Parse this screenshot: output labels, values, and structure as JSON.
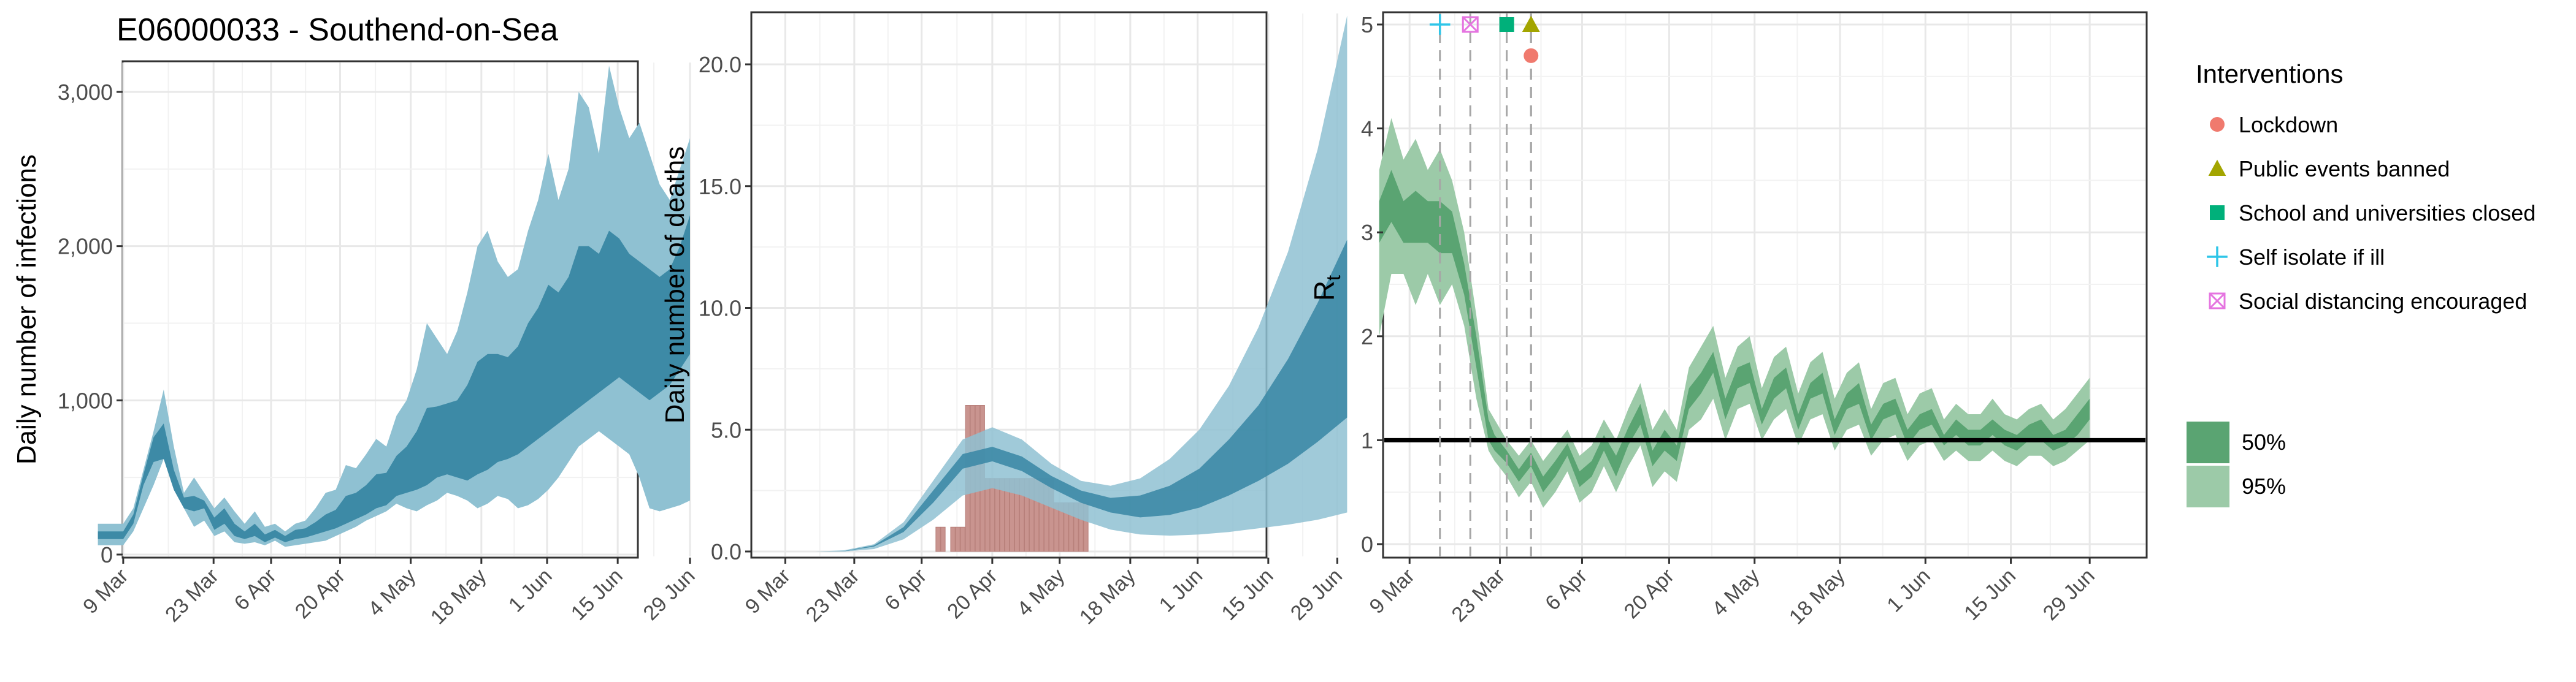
{
  "title": "E06000033 - Southend-on-Sea",
  "colors": {
    "ci95_blue": "#8fc1d2",
    "ci50_blue": "#3d8aa6",
    "bar": "#c9948f",
    "ci95_green": "#9ccaa8",
    "ci50_green": "#5aa472",
    "lockdown": "#f07a6e",
    "public_events": "#a3a500",
    "school": "#00b07a",
    "self_isolate": "#2ec5e8",
    "social_distancing": "#e574e0"
  },
  "chart_data": [
    {
      "type": "area",
      "ylabel": "Daily number of infections",
      "x_ticks": [
        "9 Mar",
        "23 Mar",
        "6 Apr",
        "20 Apr",
        "4 May",
        "18 May",
        "1 Jun",
        "15 Jun",
        "29 Jun"
      ],
      "y_ticks": [
        "0",
        "1,000",
        "2,000",
        "3,000"
      ],
      "ylim": [
        0,
        3000
      ],
      "x_days": [
        -5,
        0,
        2,
        4,
        6,
        8,
        10,
        12,
        14,
        16,
        18,
        20,
        22,
        24,
        26,
        28,
        30,
        32,
        34,
        36,
        38,
        40,
        42,
        44,
        46,
        48,
        50,
        52,
        54,
        56,
        58,
        60,
        62,
        64,
        66,
        68,
        70,
        72,
        74,
        76,
        78,
        80,
        82,
        84,
        86,
        88,
        90,
        92,
        94,
        96,
        98,
        100,
        102,
        104,
        106,
        108,
        110,
        112
      ],
      "ci95_low": [
        60,
        60,
        150,
        300,
        450,
        620,
        500,
        300,
        180,
        220,
        120,
        150,
        80,
        70,
        80,
        60,
        90,
        50,
        60,
        70,
        80,
        90,
        120,
        150,
        180,
        220,
        250,
        280,
        330,
        300,
        280,
        320,
        350,
        400,
        380,
        350,
        300,
        330,
        380,
        360,
        300,
        320,
        360,
        420,
        500,
        600,
        700,
        750,
        800,
        750,
        700,
        650,
        500,
        300,
        280,
        300,
        320,
        350
      ],
      "ci95_high": [
        200,
        200,
        300,
        550,
        800,
        1070,
        700,
        400,
        500,
        400,
        300,
        370,
        280,
        200,
        280,
        180,
        200,
        150,
        200,
        220,
        300,
        400,
        420,
        580,
        560,
        650,
        750,
        700,
        900,
        1000,
        1200,
        1500,
        1400,
        1300,
        1450,
        1700,
        2000,
        2100,
        1900,
        1800,
        1850,
        2100,
        2300,
        2600,
        2300,
        2500,
        3000,
        2900,
        2600,
        3170,
        2900,
        2700,
        2800,
        2600,
        2400,
        2300,
        2500,
        2700
      ],
      "ci50_low": [
        100,
        100,
        200,
        450,
        600,
        620,
        420,
        300,
        280,
        300,
        160,
        200,
        120,
        100,
        120,
        80,
        110,
        80,
        100,
        110,
        130,
        150,
        170,
        200,
        230,
        260,
        300,
        320,
        380,
        400,
        420,
        450,
        500,
        520,
        500,
        480,
        520,
        550,
        600,
        620,
        650,
        700,
        750,
        800,
        850,
        900,
        950,
        1000,
        1050,
        1100,
        1150,
        1100,
        1050,
        1000,
        1050,
        1100,
        1200,
        1300
      ],
      "ci50_high": [
        150,
        150,
        260,
        520,
        760,
        850,
        550,
        370,
        380,
        350,
        240,
        300,
        200,
        150,
        200,
        130,
        160,
        120,
        160,
        170,
        210,
        260,
        290,
        380,
        400,
        450,
        520,
        530,
        640,
        700,
        800,
        950,
        960,
        980,
        1000,
        1100,
        1250,
        1300,
        1300,
        1280,
        1350,
        1500,
        1600,
        1750,
        1700,
        1800,
        2000,
        2000,
        1950,
        2100,
        2050,
        1950,
        1900,
        1850,
        1800,
        1850,
        2000,
        2200
      ]
    },
    {
      "type": "bar+area",
      "ylabel": "Daily number of deaths",
      "x_ticks": [
        "9 Mar",
        "23 Mar",
        "6 Apr",
        "20 Apr",
        "4 May",
        "18 May",
        "1 Jun",
        "15 Jun",
        "29 Jun"
      ],
      "y_ticks": [
        "0.0",
        "5.0",
        "10.0",
        "15.0",
        "20.0"
      ],
      "ylim": [
        0,
        20
      ],
      "bars_x_days": [
        31,
        32,
        33,
        34,
        35,
        36,
        37,
        38,
        39,
        40,
        41,
        42,
        43,
        44,
        45,
        46,
        47,
        48,
        49,
        50,
        51,
        52,
        53,
        54,
        55,
        56,
        57,
        58,
        59,
        60,
        61
      ],
      "bars_values": [
        1,
        1,
        0,
        1,
        1,
        1,
        6,
        6,
        6,
        6,
        3,
        3,
        3,
        3,
        3,
        3,
        3,
        3,
        3,
        3,
        3,
        3,
        3,
        3,
        2,
        2,
        2,
        2,
        2,
        2,
        2
      ],
      "x_days": [
        0,
        6,
        12,
        18,
        24,
        30,
        36,
        42,
        48,
        54,
        60,
        66,
        72,
        78,
        84,
        90,
        96,
        102,
        108,
        114
      ],
      "ci95_low": [
        0,
        0,
        0,
        0.1,
        0.5,
        1.3,
        2.3,
        2.6,
        2.3,
        1.8,
        1.3,
        0.9,
        0.7,
        0.65,
        0.7,
        0.8,
        0.95,
        1.1,
        1.3,
        1.6
      ],
      "ci95_high": [
        0,
        0,
        0.05,
        0.3,
        1.2,
        2.9,
        4.6,
        5.1,
        4.6,
        3.6,
        2.9,
        2.7,
        3.0,
        3.8,
        5.0,
        6.8,
        9.2,
        12.3,
        16.5,
        22.0
      ],
      "ci50_low": [
        0,
        0,
        0.01,
        0.2,
        0.8,
        2.0,
        3.4,
        3.7,
        3.3,
        2.6,
        2.0,
        1.6,
        1.4,
        1.5,
        1.8,
        2.3,
        2.9,
        3.6,
        4.5,
        5.5
      ],
      "ci50_high": [
        0,
        0,
        0.02,
        0.25,
        1.0,
        2.5,
        4.0,
        4.3,
        3.9,
        3.1,
        2.5,
        2.2,
        2.3,
        2.7,
        3.4,
        4.6,
        6.0,
        7.9,
        10.2,
        12.8
      ]
    },
    {
      "type": "area",
      "ylabel": "R",
      "ylabel_sub": "t",
      "x_ticks": [
        "9 Mar",
        "23 Mar",
        "6 Apr",
        "20 Apr",
        "4 May",
        "18 May",
        "1 Jun",
        "15 Jun",
        "29 Jun"
      ],
      "y_ticks": [
        "0",
        "1",
        "2",
        "3",
        "4",
        "5"
      ],
      "ylim": [
        0,
        5
      ],
      "reference_line": 1,
      "x_days": [
        -5,
        -3,
        -1,
        1,
        3,
        5,
        7,
        9,
        11,
        13,
        14,
        16,
        18,
        20,
        22,
        24,
        26,
        28,
        30,
        32,
        34,
        36,
        38,
        40,
        42,
        44,
        46,
        48,
        50,
        52,
        54,
        56,
        58,
        60,
        62,
        64,
        66,
        68,
        70,
        72,
        74,
        76,
        78,
        80,
        82,
        84,
        86,
        88,
        90,
        92,
        94,
        96,
        98,
        100,
        102,
        104,
        106,
        108,
        110,
        112
      ],
      "ci95_low": [
        2.0,
        2.6,
        2.6,
        2.3,
        2.6,
        2.3,
        2.5,
        2.1,
        1.4,
        0.9,
        0.8,
        0.65,
        0.45,
        0.6,
        0.35,
        0.5,
        0.7,
        0.4,
        0.5,
        0.75,
        0.5,
        0.75,
        0.95,
        0.55,
        0.7,
        0.6,
        1.1,
        1.2,
        1.4,
        1.0,
        1.3,
        1.35,
        1.0,
        1.2,
        1.3,
        0.95,
        1.2,
        1.25,
        0.9,
        1.1,
        1.15,
        0.85,
        1.0,
        1.05,
        0.8,
        0.95,
        1.0,
        0.8,
        0.9,
        0.8,
        0.8,
        0.9,
        0.8,
        0.75,
        0.85,
        0.85,
        0.75,
        0.8,
        0.9,
        1.0
      ],
      "ci95_high": [
        3.6,
        4.1,
        3.7,
        3.9,
        3.6,
        3.8,
        3.5,
        3.0,
        2.2,
        1.3,
        1.2,
        1.0,
        0.85,
        1.0,
        0.8,
        0.95,
        1.1,
        0.85,
        0.95,
        1.2,
        1.0,
        1.3,
        1.55,
        1.1,
        1.3,
        1.1,
        1.7,
        1.9,
        2.1,
        1.6,
        1.9,
        2.0,
        1.5,
        1.8,
        1.9,
        1.45,
        1.75,
        1.85,
        1.4,
        1.65,
        1.75,
        1.3,
        1.55,
        1.6,
        1.25,
        1.45,
        1.5,
        1.2,
        1.35,
        1.25,
        1.25,
        1.4,
        1.25,
        1.2,
        1.3,
        1.35,
        1.2,
        1.3,
        1.45,
        1.6
      ],
      "ci50_low": [
        2.9,
        3.1,
        2.9,
        2.9,
        2.9,
        2.8,
        2.8,
        2.4,
        1.7,
        1.0,
        0.9,
        0.78,
        0.6,
        0.75,
        0.5,
        0.65,
        0.85,
        0.55,
        0.65,
        0.9,
        0.65,
        0.95,
        1.15,
        0.75,
        0.9,
        0.8,
        1.3,
        1.45,
        1.65,
        1.2,
        1.5,
        1.55,
        1.15,
        1.4,
        1.5,
        1.1,
        1.4,
        1.45,
        1.05,
        1.3,
        1.35,
        1.0,
        1.2,
        1.25,
        0.95,
        1.1,
        1.15,
        0.95,
        1.05,
        0.95,
        0.95,
        1.05,
        0.95,
        0.9,
        1.0,
        1.0,
        0.9,
        0.95,
        1.05,
        1.2
      ],
      "ci50_high": [
        3.3,
        3.6,
        3.3,
        3.4,
        3.3,
        3.3,
        3.2,
        2.7,
        2.0,
        1.2,
        1.05,
        0.9,
        0.72,
        0.88,
        0.65,
        0.8,
        0.97,
        0.7,
        0.8,
        1.05,
        0.85,
        1.12,
        1.35,
        0.9,
        1.1,
        0.95,
        1.5,
        1.65,
        1.85,
        1.4,
        1.7,
        1.75,
        1.3,
        1.6,
        1.7,
        1.25,
        1.55,
        1.65,
        1.2,
        1.45,
        1.55,
        1.15,
        1.35,
        1.4,
        1.1,
        1.25,
        1.3,
        1.05,
        1.2,
        1.1,
        1.1,
        1.2,
        1.1,
        1.05,
        1.15,
        1.2,
        1.05,
        1.1,
        1.25,
        1.4
      ],
      "interventions": [
        {
          "name": "Self isolate if ill",
          "day": 5,
          "marker": "plus"
        },
        {
          "name": "Social distancing encouraged",
          "day": 10,
          "marker": "boxx"
        },
        {
          "name": "School and universities closed",
          "day": 16,
          "marker": "square"
        },
        {
          "name": "Public events banned",
          "day": 20,
          "marker": "triangle"
        },
        {
          "name": "Lockdown",
          "day": 20,
          "marker": "circle"
        }
      ]
    }
  ],
  "legend": {
    "title": "Interventions",
    "items": [
      {
        "label": "Lockdown",
        "marker": "circle"
      },
      {
        "label": "Public events banned",
        "marker": "triangle"
      },
      {
        "label": "School and universities closed",
        "marker": "square"
      },
      {
        "label": "Self isolate if ill",
        "marker": "plus"
      },
      {
        "label": "Social distancing encouraged",
        "marker": "boxx"
      }
    ],
    "ci_items": [
      {
        "label": "50%"
      },
      {
        "label": "95%"
      }
    ]
  }
}
